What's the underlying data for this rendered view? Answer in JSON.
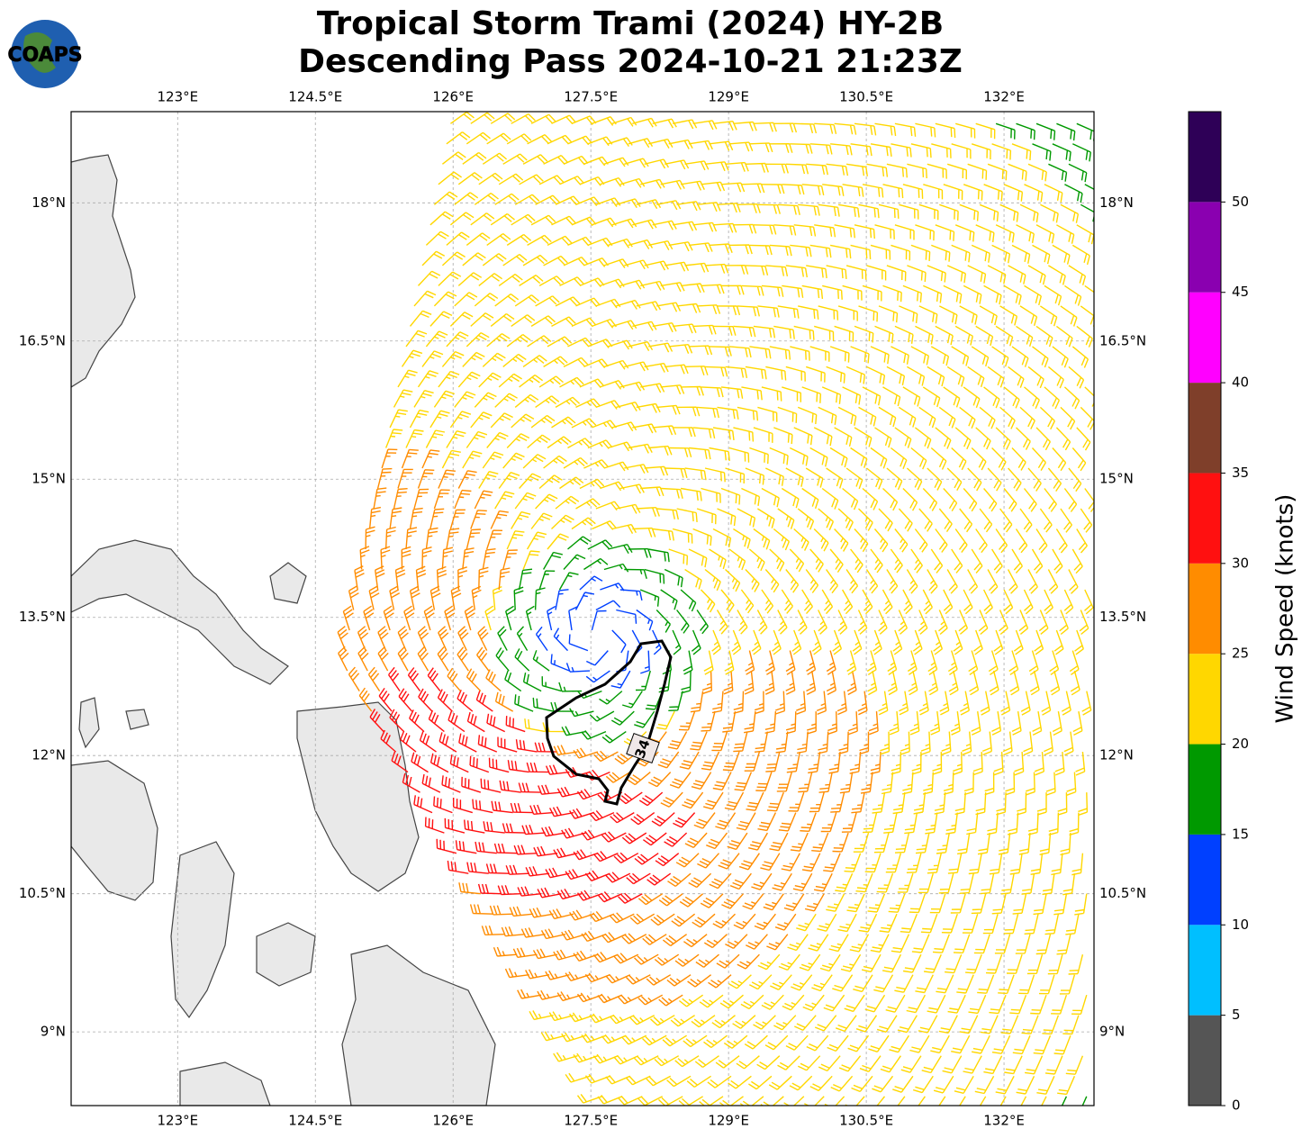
{
  "header": {
    "title_line1": "Tropical Storm Trami (2024) HY-2B",
    "title_line2": "Descending Pass 2024-10-21 21:23Z",
    "logo": "COAPS"
  },
  "map": {
    "lonlim": [
      121.84,
      132.98
    ],
    "latlim": [
      8.2,
      18.99
    ],
    "lon_ticks": [
      {
        "value": 123,
        "label": "123°E"
      },
      {
        "value": 124.5,
        "label": "124.5°E"
      },
      {
        "value": 126,
        "label": "126°E"
      },
      {
        "value": 127.5,
        "label": "127.5°E"
      },
      {
        "value": 129,
        "label": "129°E"
      },
      {
        "value": 130.5,
        "label": "130.5°E"
      },
      {
        "value": 132,
        "label": "132°E"
      }
    ],
    "lat_ticks": [
      {
        "value": 9,
        "label": "9°N"
      },
      {
        "value": 10.5,
        "label": "10.5°N"
      },
      {
        "value": 12,
        "label": "12°N"
      },
      {
        "value": 13.5,
        "label": "13.5°N"
      },
      {
        "value": 15,
        "label": "15°N"
      },
      {
        "value": 16.5,
        "label": "16.5°N"
      },
      {
        "value": 18,
        "label": "18°N"
      }
    ],
    "contour_label": "34"
  },
  "colorbar": {
    "label": "Wind Speed (knots)",
    "lim": [
      0,
      55
    ],
    "ticks": [
      0,
      5,
      10,
      15,
      20,
      25,
      30,
      35,
      40,
      45,
      50
    ],
    "colors": [
      "#555555",
      "#00bfff",
      "#0040ff",
      "#009900",
      "#ffd700",
      "#ff8c00",
      "#ff1010",
      "#7f3f2a",
      "#ff00ff",
      "#8a00b0",
      "#2e0057"
    ]
  }
}
